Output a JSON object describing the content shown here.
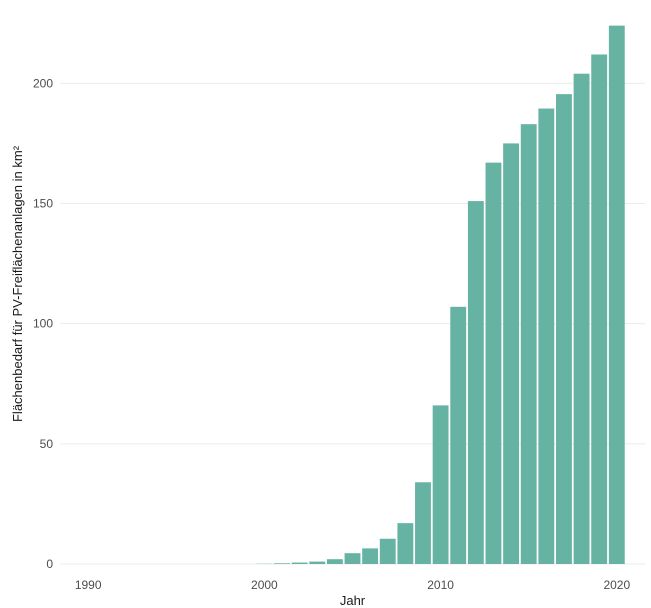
{
  "chart_data": {
    "type": "bar",
    "xlabel": "Jahr",
    "ylabel": "Flächenbedarf für PV-Freiflächenanlagen in km²",
    "xlim": [
      1988.4,
      2021.6
    ],
    "ylim": [
      0,
      233
    ],
    "x_ticks": [
      1990,
      2000,
      2010,
      2020
    ],
    "y_ticks": [
      0,
      50,
      100,
      150,
      200
    ],
    "grid": true,
    "bar_color": "#66b3a3",
    "years": [
      1990,
      1991,
      1992,
      1993,
      1994,
      1995,
      1996,
      1997,
      1998,
      1999,
      2000,
      2001,
      2002,
      2003,
      2004,
      2005,
      2006,
      2007,
      2008,
      2009,
      2010,
      2011,
      2012,
      2013,
      2014,
      2015,
      2016,
      2017,
      2018,
      2019,
      2020
    ],
    "values": [
      0,
      0,
      0,
      0,
      0,
      0,
      0,
      0,
      0,
      0,
      0.1,
      0.3,
      0.6,
      1,
      2,
      4.5,
      6.5,
      10.5,
      17,
      34,
      66,
      107,
      151,
      167,
      175,
      183,
      189.5,
      195.5,
      204,
      212,
      224
    ]
  }
}
